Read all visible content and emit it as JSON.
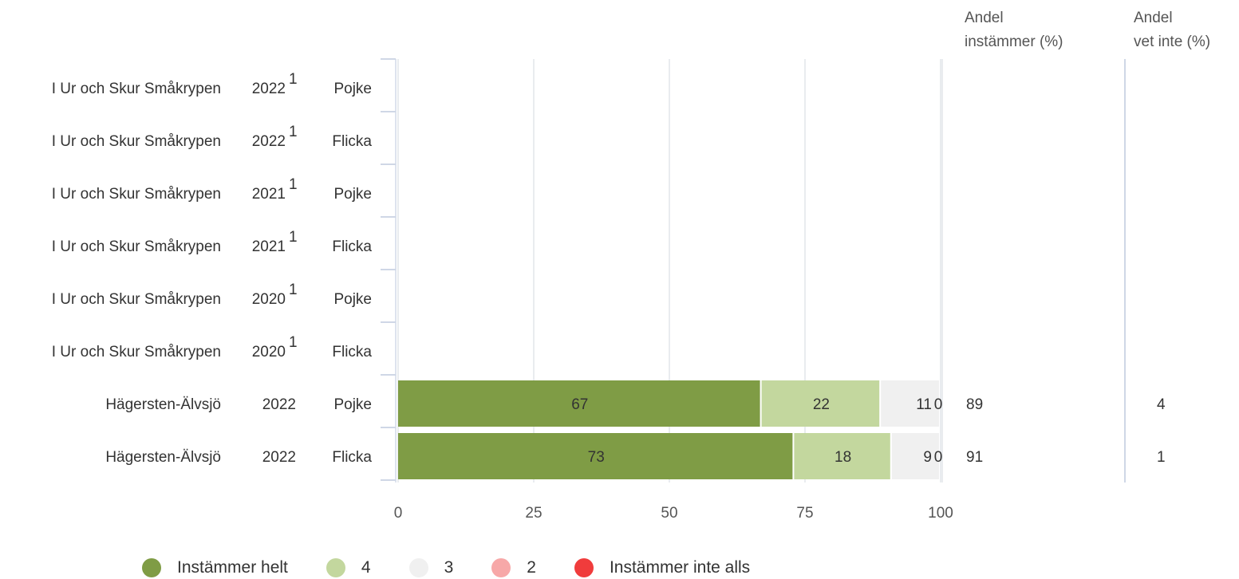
{
  "headers": {
    "agree_line1": "Andel",
    "agree_line2": "instämmer (%)",
    "dontknow_line1": "Andel",
    "dontknow_line2": "vet inte (%)"
  },
  "legend": [
    {
      "label": "Instämmer helt",
      "color": "#7f9c45"
    },
    {
      "label": "4",
      "color": "#c3d79e"
    },
    {
      "label": "3",
      "color": "#f0f0f0"
    },
    {
      "label": "2",
      "color": "#f7a8a8"
    },
    {
      "label": "Instämmer inte alls",
      "color": "#f03c3c"
    }
  ],
  "chart_data": {
    "type": "bar",
    "orientation": "horizontal",
    "stacked": true,
    "xlim": [
      0,
      100
    ],
    "xticks": [
      "0",
      "25",
      "50",
      "75",
      "100"
    ],
    "grid": true,
    "legend_position": "bottom",
    "rows": [
      {
        "name": "I Ur och Skur Småkrypen",
        "year": "2022",
        "footnote": "1",
        "gender": "Pojke",
        "values": null,
        "agree": "",
        "dontknow": ""
      },
      {
        "name": "I Ur och Skur Småkrypen",
        "year": "2022",
        "footnote": "1",
        "gender": "Flicka",
        "values": null,
        "agree": "",
        "dontknow": ""
      },
      {
        "name": "I Ur och Skur Småkrypen",
        "year": "2021",
        "footnote": "1",
        "gender": "Pojke",
        "values": null,
        "agree": "",
        "dontknow": ""
      },
      {
        "name": "I Ur och Skur Småkrypen",
        "year": "2021",
        "footnote": "1",
        "gender": "Flicka",
        "values": null,
        "agree": "",
        "dontknow": ""
      },
      {
        "name": "I Ur och Skur Småkrypen",
        "year": "2020",
        "footnote": "1",
        "gender": "Pojke",
        "values": null,
        "agree": "",
        "dontknow": ""
      },
      {
        "name": "I Ur och Skur Småkrypen",
        "year": "2020",
        "footnote": "1",
        "gender": "Flicka",
        "values": null,
        "agree": "",
        "dontknow": ""
      },
      {
        "name": "Hägersten-Älvsjö",
        "year": "2022",
        "footnote": "",
        "gender": "Pojke",
        "values": [
          67,
          22,
          11,
          0,
          0
        ],
        "agree": "89",
        "dontknow": "4"
      },
      {
        "name": "Hägersten-Älvsjö",
        "year": "2022",
        "footnote": "",
        "gender": "Flicka",
        "values": [
          73,
          18,
          9,
          0,
          0
        ],
        "agree": "91",
        "dontknow": "1"
      }
    ],
    "series": [
      {
        "name": "Instämmer helt",
        "color": "#7f9c45",
        "label_color": "#ffffff"
      },
      {
        "name": "4",
        "color": "#c3d79e",
        "label_color": "#ffffff"
      },
      {
        "name": "3",
        "color": "#f0f0f0",
        "label_color": "#111111"
      },
      {
        "name": "2",
        "color": "#f7a8a8",
        "label_color": "#cccccc"
      },
      {
        "name": "Instämmer inte alls",
        "color": "#f03c3c",
        "label_color": "#ffffff"
      }
    ]
  }
}
